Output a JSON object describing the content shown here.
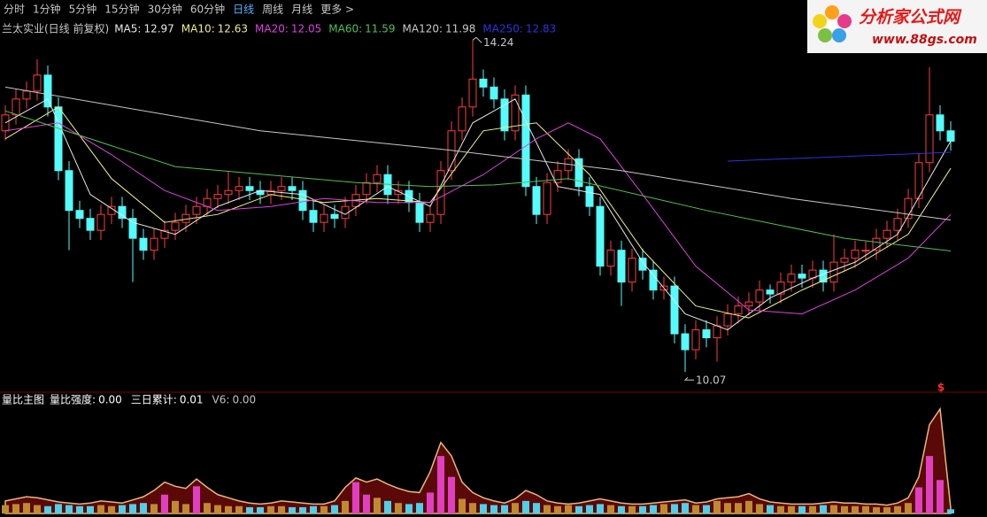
{
  "toolbar": {
    "tabs": [
      {
        "label": "分时",
        "active": false
      },
      {
        "label": "1分钟",
        "active": false
      },
      {
        "label": "5分钟",
        "active": false
      },
      {
        "label": "15分钟",
        "active": false
      },
      {
        "label": "30分钟",
        "active": false
      },
      {
        "label": "60分钟",
        "active": false
      },
      {
        "label": "日线",
        "active": true
      },
      {
        "label": "周线",
        "active": false
      },
      {
        "label": "月线",
        "active": false
      },
      {
        "label": "更多 >",
        "active": false
      }
    ]
  },
  "logo": {
    "title": "分析家公式网",
    "url": "www.88gs.com"
  },
  "chart_data": [
    {
      "type": "candlestick",
      "title": "兰太实业(日线 前复权)",
      "ylim": [
        9.85,
        14.41
      ],
      "up_color": "#ff3c3c",
      "down_color": "#54fcfc",
      "candles": {
        "open": [
          13.1,
          13.3,
          13.5,
          13.6,
          13.8,
          13.4,
          12.6,
          12.1,
          12.0,
          11.85,
          12.05,
          12.15,
          12.0,
          11.75,
          11.6,
          11.75,
          11.85,
          11.95,
          12.05,
          12.15,
          12.25,
          12.3,
          12.35,
          12.4,
          12.35,
          12.3,
          12.35,
          12.4,
          12.35,
          12.1,
          11.95,
          12.05,
          12.0,
          12.15,
          12.3,
          12.45,
          12.55,
          12.3,
          12.35,
          12.2,
          11.95,
          12.05,
          12.6,
          13.1,
          13.4,
          13.75,
          13.65,
          13.5,
          13.1,
          13.55,
          12.4,
          12.05,
          12.45,
          12.6,
          12.75,
          12.4,
          12.15,
          11.4,
          11.6,
          11.2,
          11.5,
          11.35,
          11.1,
          11.15,
          10.55,
          10.35,
          10.6,
          10.5,
          10.65,
          10.8,
          10.9,
          10.95,
          11.1,
          11.05,
          11.2,
          11.3,
          11.25,
          11.35,
          11.2,
          11.45,
          11.5,
          11.6,
          11.6,
          11.75,
          11.85,
          12.0,
          12.25,
          12.7,
          13.3,
          13.1
        ],
        "close": [
          13.3,
          13.5,
          13.6,
          13.8,
          13.4,
          12.6,
          12.1,
          12.0,
          11.85,
          12.05,
          12.15,
          12.0,
          11.75,
          11.6,
          11.75,
          11.85,
          11.95,
          12.05,
          12.15,
          12.25,
          12.3,
          12.35,
          12.4,
          12.35,
          12.3,
          12.35,
          12.4,
          12.35,
          12.1,
          11.95,
          12.05,
          12.0,
          12.15,
          12.3,
          12.45,
          12.55,
          12.3,
          12.35,
          12.2,
          11.95,
          12.05,
          12.6,
          13.1,
          13.4,
          13.75,
          13.65,
          13.5,
          13.1,
          13.55,
          12.4,
          12.05,
          12.45,
          12.6,
          12.75,
          12.4,
          12.15,
          11.4,
          11.6,
          11.2,
          11.5,
          11.35,
          11.1,
          11.15,
          10.55,
          10.35,
          10.6,
          10.5,
          10.65,
          10.8,
          10.9,
          10.95,
          11.1,
          11.05,
          11.2,
          11.3,
          11.25,
          11.35,
          11.2,
          11.45,
          11.5,
          11.6,
          11.6,
          11.75,
          11.85,
          12.0,
          12.25,
          12.7,
          13.3,
          13.1,
          12.97
        ],
        "high": [
          13.42,
          13.62,
          13.72,
          14.0,
          13.92,
          13.52,
          12.72,
          12.22,
          12.12,
          12.17,
          12.27,
          12.27,
          12.12,
          11.87,
          11.87,
          11.97,
          12.07,
          12.17,
          12.27,
          12.37,
          12.42,
          12.6,
          12.52,
          12.52,
          12.47,
          12.47,
          12.52,
          12.52,
          12.47,
          12.22,
          12.17,
          12.17,
          12.27,
          12.42,
          12.57,
          12.67,
          12.67,
          12.47,
          12.47,
          12.32,
          12.17,
          12.72,
          13.22,
          13.52,
          14.24,
          13.87,
          13.77,
          13.62,
          13.67,
          13.67,
          12.52,
          12.57,
          12.72,
          12.87,
          12.87,
          12.52,
          12.27,
          11.72,
          11.72,
          11.62,
          11.62,
          11.47,
          11.27,
          11.27,
          10.67,
          10.72,
          10.72,
          10.77,
          10.92,
          11.02,
          11.07,
          11.22,
          11.17,
          11.32,
          11.42,
          11.42,
          11.47,
          11.47,
          11.8,
          11.62,
          11.72,
          11.72,
          11.87,
          11.97,
          12.12,
          12.37,
          12.82,
          13.9,
          13.42,
          13.22
        ],
        "low": [
          12.98,
          13.18,
          13.38,
          13.48,
          13.28,
          12.48,
          11.6,
          11.88,
          11.73,
          11.73,
          11.93,
          11.88,
          11.2,
          11.48,
          11.48,
          11.63,
          11.73,
          11.83,
          11.93,
          12.03,
          12.13,
          12.18,
          12.23,
          12.23,
          12.18,
          12.18,
          12.23,
          12.23,
          11.98,
          11.83,
          11.83,
          11.88,
          11.88,
          12.03,
          12.18,
          12.33,
          12.18,
          12.18,
          12.08,
          11.83,
          11.83,
          11.93,
          12.48,
          12.98,
          13.28,
          13.53,
          13.38,
          12.98,
          12.98,
          12.28,
          11.93,
          11.93,
          12.33,
          12.48,
          12.28,
          12.03,
          11.28,
          11.28,
          10.9,
          11.08,
          11.23,
          10.98,
          10.98,
          10.43,
          10.07,
          10.23,
          10.38,
          10.2,
          10.53,
          10.68,
          10.78,
          10.83,
          10.93,
          10.93,
          11.08,
          11.13,
          11.13,
          11.08,
          11.08,
          11.33,
          11.38,
          11.48,
          11.48,
          11.63,
          11.73,
          11.88,
          12.13,
          12.58,
          12.98,
          12.85
        ]
      },
      "series": [
        {
          "name": "MA5:",
          "value": 12.97,
          "color": "#e8e8e8",
          "x": [
            0,
            4,
            8,
            12,
            16,
            20,
            24,
            28,
            32,
            36,
            40,
            44,
            48,
            52,
            56,
            60,
            64,
            68,
            72,
            76,
            80,
            84,
            89
          ],
          "values": [
            13.2,
            13.5,
            12.3,
            11.95,
            11.8,
            12.15,
            12.35,
            12.3,
            12.05,
            12.4,
            12.15,
            13.2,
            13.5,
            12.4,
            12.3,
            11.45,
            10.8,
            10.6,
            11.0,
            11.25,
            11.45,
            11.8,
            12.97
          ]
        },
        {
          "name": "MA10:",
          "value": 12.63,
          "color": "#f0f080",
          "x": [
            0,
            5,
            10,
            15,
            20,
            25,
            30,
            35,
            40,
            45,
            50,
            55,
            60,
            65,
            70,
            75,
            80,
            85,
            89
          ],
          "values": [
            13.0,
            13.4,
            12.5,
            11.95,
            12.05,
            12.3,
            12.2,
            12.25,
            12.2,
            13.1,
            13.2,
            12.55,
            11.6,
            10.9,
            10.75,
            11.1,
            11.4,
            11.8,
            12.63
          ]
        },
        {
          "name": "MA20:",
          "value": 12.05,
          "color": "#e040e0",
          "x": [
            0,
            5,
            10,
            15,
            20,
            25,
            30,
            35,
            40,
            45,
            50,
            53,
            56,
            60,
            65,
            70,
            75,
            80,
            85,
            89
          ],
          "values": [
            13.1,
            13.2,
            12.8,
            12.35,
            12.1,
            12.15,
            12.25,
            12.2,
            12.2,
            12.55,
            13.0,
            13.2,
            13.0,
            12.3,
            11.4,
            10.85,
            10.8,
            11.1,
            11.5,
            12.05
          ]
        },
        {
          "name": "MA60:",
          "value": 11.59,
          "color": "#50c050",
          "x": [
            0,
            16,
            33,
            40,
            46,
            53,
            66,
            79,
            89
          ],
          "values": [
            13.35,
            12.65,
            12.45,
            12.4,
            12.42,
            12.5,
            12.1,
            11.75,
            11.59
          ]
        },
        {
          "name": "MA120:",
          "value": 11.98,
          "color": "#c8c8c8",
          "x": [
            0,
            24,
            41,
            58,
            74,
            89
          ],
          "values": [
            13.65,
            13.1,
            12.87,
            12.6,
            12.25,
            11.98
          ]
        },
        {
          "name": "MA250:",
          "value": 12.83,
          "color": "#3030e0",
          "x": [
            68,
            89
          ],
          "values": [
            12.72,
            12.83
          ]
        }
      ]
    },
    {
      "type": "volume_ratio",
      "title": "量比主图",
      "ylim": [
        0,
        10
      ],
      "indicators": [
        {
          "name": "量比强度:",
          "value": 0,
          "label": "0.00",
          "color": "#ffffff"
        },
        {
          "name": "三日累计:",
          "value": 0.01,
          "color": "#ffffff"
        },
        {
          "name": "V6:",
          "value": 0,
          "label": "0.00",
          "color": "#c0c0c0"
        }
      ],
      "marker": "$",
      "area": {
        "color": "#5a0808",
        "line_color": "#e8b878",
        "values": [
          1.2,
          1.4,
          1.6,
          1.5,
          1.3,
          1.1,
          1.0,
          0.9,
          1.0,
          1.2,
          1.1,
          1.0,
          1.3,
          1.6,
          2.2,
          3.0,
          2.6,
          2.4,
          3.3,
          2.5,
          1.8,
          1.5,
          1.2,
          1.0,
          0.9,
          1.0,
          1.2,
          1.1,
          1.0,
          0.9,
          0.9,
          1.2,
          2.5,
          3.4,
          3.0,
          3.3,
          2.8,
          2.4,
          2.1,
          2.0,
          4.0,
          6.8,
          5.5,
          3.0,
          2.0,
          1.5,
          1.2,
          1.0,
          1.4,
          2.2,
          1.8,
          1.2,
          1.0,
          0.9,
          1.0,
          1.2,
          1.4,
          1.2,
          1.0,
          0.9,
          0.9,
          1.0,
          1.1,
          1.2,
          1.3,
          1.0,
          1.1,
          1.4,
          1.5,
          1.6,
          1.9,
          1.4,
          1.1,
          1.0,
          0.9,
          0.9,
          0.9,
          1.0,
          1.1,
          1.0,
          1.0,
          0.9,
          0.9,
          0.8,
          1.0,
          1.5,
          3.5,
          8.5,
          10.0,
          0.5
        ]
      },
      "bars": {
        "values": [
          0.8,
          0.9,
          1.0,
          0.8,
          0.7,
          0.9,
          0.8,
          0.7,
          0.7,
          0.8,
          0.7,
          0.8,
          0.9,
          1.0,
          0.9,
          1.8,
          1.2,
          0.9,
          2.6,
          1.0,
          0.8,
          0.7,
          0.7,
          0.6,
          0.6,
          0.7,
          0.7,
          0.6,
          0.6,
          0.7,
          0.7,
          0.8,
          1.2,
          3.0,
          1.8,
          1.5,
          1.2,
          1.0,
          0.9,
          1.0,
          2.0,
          5.5,
          3.5,
          1.4,
          1.0,
          0.9,
          0.8,
          0.8,
          1.0,
          1.2,
          1.0,
          0.8,
          0.7,
          0.8,
          0.7,
          0.8,
          0.9,
          0.8,
          0.7,
          0.7,
          0.7,
          0.8,
          0.9,
          0.9,
          1.0,
          0.8,
          0.8,
          1.2,
          1.0,
          1.0,
          1.2,
          0.9,
          0.8,
          0.7,
          0.7,
          0.7,
          0.7,
          0.8,
          0.8,
          0.7,
          0.7,
          0.7,
          0.6,
          0.6,
          0.7,
          1.0,
          2.5,
          5.5,
          3.2,
          0.4
        ],
        "colors": [
          "#c08a30",
          "#c08a30",
          "#c08a30",
          "#c08a30",
          "#50d0e8",
          "#50d0e8",
          "#50d0e8",
          "#50d0e8",
          "#50d0e8",
          "#c08a30",
          "#c08a30",
          "#50d0e8",
          "#50d0e8",
          "#50d0e8",
          "#c08a30",
          "#e040c0",
          "#c08a30",
          "#c08a30",
          "#e040c0",
          "#c08a30",
          "#c08a30",
          "#c08a30",
          "#c08a30",
          "#50d0e8",
          "#50d0e8",
          "#c08a30",
          "#c08a30",
          "#50d0e8",
          "#50d0e8",
          "#50d0e8",
          "#c08a30",
          "#50d0e8",
          "#c08a30",
          "#e040c0",
          "#e040c0",
          "#c08a30",
          "#50d0e8",
          "#c08a30",
          "#50d0e8",
          "#50d0e8",
          "#e040c0",
          "#e040c0",
          "#e040c0",
          "#c08a30",
          "#c08a30",
          "#50d0e8",
          "#50d0e8",
          "#50d0e8",
          "#c08a30",
          "#50d0e8",
          "#50d0e8",
          "#c08a30",
          "#c08a30",
          "#c08a30",
          "#50d0e8",
          "#50d0e8",
          "#50d0e8",
          "#c08a30",
          "#50d0e8",
          "#c08a30",
          "#50d0e8",
          "#50d0e8",
          "#c08a30",
          "#50d0e8",
          "#50d0e8",
          "#c08a30",
          "#50d0e8",
          "#c08a30",
          "#c08a30",
          "#c08a30",
          "#c08a30",
          "#c08a30",
          "#50d0e8",
          "#c08a30",
          "#c08a30",
          "#50d0e8",
          "#c08a30",
          "#50d0e8",
          "#c08a30",
          "#c08a30",
          "#c08a30",
          "#c08a30",
          "#c08a30",
          "#c08a30",
          "#c08a30",
          "#c08a30",
          "#e040c0",
          "#e040c0",
          "#e040c0",
          "#50d0e8"
        ]
      }
    }
  ]
}
